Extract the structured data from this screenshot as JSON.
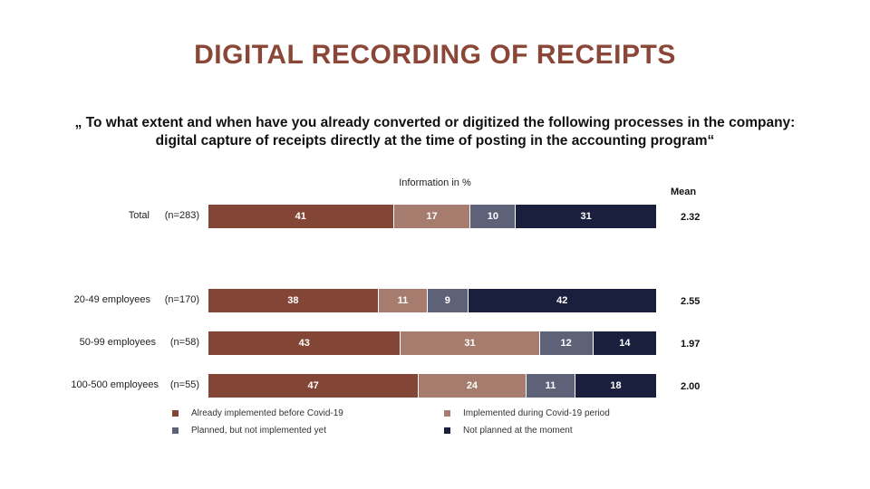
{
  "title": "DIGITAL RECORDING OF RECEIPTS",
  "question_line1": "„ To what extent and when have you already converted or digitized the following processes in the company:",
  "question_line2": "digital capture of receipts directly at the time of posting in the accounting program“",
  "chart_data": {
    "type": "bar",
    "orientation": "horizontal-stacked",
    "subtitle": "Information in %",
    "mean_header": "Mean",
    "categories": [
      "Total",
      "20-49 employees",
      "50-99 employees",
      "100-500 employees"
    ],
    "n_labels": [
      "(n=283)",
      "(n=170)",
      "(n=58)",
      "(n=55)"
    ],
    "means": [
      "2.32",
      "2.55",
      "1.97",
      "2.00"
    ],
    "series": [
      {
        "name": "Already implemented before Covid-19",
        "color": "#834535",
        "values": [
          41,
          38,
          43,
          47
        ]
      },
      {
        "name": "Implemented during Covid-19 period",
        "color": "#a67c6e",
        "values": [
          17,
          11,
          31,
          24
        ]
      },
      {
        "name": "Planned, but not implemented yet",
        "color": "#5e6278",
        "values": [
          10,
          9,
          12,
          11
        ]
      },
      {
        "name": "Not planned at the moment",
        "color": "#1b1f3e",
        "values": [
          31,
          42,
          14,
          18
        ]
      }
    ],
    "xlim": [
      0,
      100
    ]
  }
}
